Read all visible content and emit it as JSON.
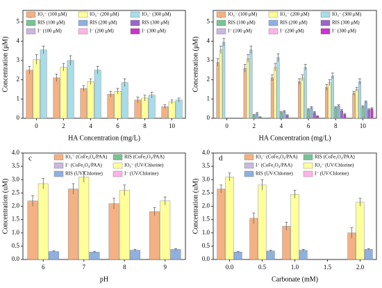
{
  "chart_data": [
    {
      "type": "bar",
      "label": "a",
      "xlabel": "HA Concentration (mg/L)",
      "ylabel": "Concentration (μM)",
      "categories": [
        "0",
        "2",
        "4",
        "6",
        "8",
        "10"
      ],
      "ylim": [
        0,
        5.6
      ],
      "yticks": [
        0,
        1,
        2,
        3,
        4,
        5
      ],
      "series": [
        {
          "name": "IO₃⁻ (100 μM)",
          "color": "#f4b183",
          "values": [
            2.5,
            2.1,
            1.55,
            1.25,
            0.95,
            0.6
          ],
          "errors": [
            0.2,
            0.2,
            0.15,
            0.15,
            0.15,
            0.1
          ]
        },
        {
          "name": "IO₃⁻ (200 μM)",
          "color": "#ffff99",
          "values": [
            3.05,
            2.65,
            1.9,
            1.4,
            1.05,
            0.85
          ],
          "errors": [
            0.25,
            0.2,
            0.15,
            0.15,
            0.15,
            0.1
          ]
        },
        {
          "name": "IO₃⁻ (300 μM)",
          "color": "#a8dce8",
          "values": [
            3.55,
            3.0,
            2.5,
            1.85,
            1.2,
            0.95
          ],
          "errors": [
            0.2,
            0.25,
            0.2,
            0.2,
            0.15,
            0.1
          ]
        },
        {
          "name": "RIS (100 μM)",
          "color": "#77c493",
          "values": [
            0,
            0,
            0,
            0,
            0,
            0
          ],
          "errors": [
            0,
            0,
            0,
            0,
            0,
            0
          ]
        },
        {
          "name": "RIS (200 μM)",
          "color": "#8fb0e0",
          "values": [
            0,
            0,
            0,
            0,
            0,
            0
          ],
          "errors": [
            0,
            0,
            0,
            0,
            0,
            0
          ]
        },
        {
          "name": "RIS (300 μM)",
          "color": "#9966cc",
          "values": [
            0,
            0,
            0,
            0,
            0,
            0
          ],
          "errors": [
            0,
            0,
            0,
            0,
            0,
            0
          ]
        },
        {
          "name": "I⁻ (100 μM)",
          "color": "#c9b7e0",
          "values": [
            0,
            0,
            0,
            0,
            0,
            0
          ],
          "errors": [
            0,
            0,
            0,
            0,
            0,
            0
          ]
        },
        {
          "name": "I⁻ (200 μM)",
          "color": "#ffb3e6",
          "values": [
            0,
            0,
            0,
            0,
            0,
            0
          ],
          "errors": [
            0,
            0,
            0,
            0,
            0,
            0
          ]
        },
        {
          "name": "I⁻ (300 μM)",
          "color": "#cc33cc",
          "values": [
            0,
            0,
            0,
            0,
            0,
            0
          ],
          "errors": [
            0,
            0,
            0,
            0,
            0,
            0
          ]
        }
      ]
    },
    {
      "type": "bar",
      "label": "b",
      "xlabel": "HA Concentration (mg/L)",
      "ylabel": "Concentration (μM)",
      "categories": [
        "0",
        "2",
        "4",
        "6",
        "8",
        "10"
      ],
      "ylim": [
        0,
        5.6
      ],
      "yticks": [
        0,
        1,
        2,
        3,
        4,
        5
      ],
      "series": [
        {
          "name": "IO₃⁻ (100 μM)",
          "color": "#f4b183",
          "values": [
            2.9,
            2.6,
            2.1,
            1.9,
            1.6,
            1.3
          ],
          "errors": [
            0.2,
            0.2,
            0.15,
            0.15,
            0.15,
            0.1
          ]
        },
        {
          "name": "IO₃⁻ (200 μM)",
          "color": "#ffff99",
          "values": [
            3.55,
            3.1,
            2.65,
            2.1,
            1.85,
            1.5
          ],
          "errors": [
            0.2,
            0.2,
            0.2,
            0.15,
            0.15,
            0.1
          ]
        },
        {
          "name": "IO₃⁻ (300 μM)",
          "color": "#a8dce8",
          "values": [
            3.95,
            3.55,
            3.15,
            2.65,
            2.2,
            1.9
          ],
          "errors": [
            0.2,
            0.2,
            0.2,
            0.15,
            0.15,
            0.15
          ]
        },
        {
          "name": "RIS (100 μM)",
          "color": "#77c493",
          "values": [
            0,
            0.15,
            0.3,
            0.45,
            0.55,
            0.6
          ],
          "errors": [
            0,
            0.05,
            0.05,
            0.05,
            0.05,
            0.05
          ]
        },
        {
          "name": "RIS (200 μM)",
          "color": "#8fb0e0",
          "values": [
            0,
            0.25,
            0.35,
            0.55,
            0.65,
            0.85
          ],
          "errors": [
            0,
            0.05,
            0.05,
            0.05,
            0.05,
            0.05
          ]
        },
        {
          "name": "RIS (300 μM)",
          "color": "#9966cc",
          "values": [
            0,
            0.05,
            0.15,
            0.3,
            0.4,
            0.45
          ],
          "errors": [
            0,
            0.03,
            0.03,
            0.05,
            0.05,
            0.05
          ]
        },
        {
          "name": "I⁻ (100 μM)",
          "color": "#c9b7e0",
          "values": [
            0,
            0,
            0,
            0,
            0,
            0
          ],
          "errors": [
            0,
            0,
            0,
            0,
            0,
            0
          ]
        },
        {
          "name": "I⁻ (200 μM)",
          "color": "#ffb3e6",
          "values": [
            0,
            0,
            0,
            0,
            0,
            0
          ],
          "errors": [
            0,
            0,
            0,
            0,
            0,
            0
          ]
        },
        {
          "name": "I⁻ (300 μM)",
          "color": "#cc33cc",
          "values": [
            0,
            0,
            0,
            0.1,
            0.2,
            0.5
          ],
          "errors": [
            0,
            0,
            0,
            0.03,
            0.05,
            0.05
          ]
        }
      ]
    },
    {
      "type": "bar",
      "label": "c",
      "xlabel": "pH",
      "ylabel": "Concentration (uM)",
      "categories": [
        "6",
        "7",
        "8",
        "9"
      ],
      "ylim": [
        0,
        4
      ],
      "yticks": [
        {
          "value": 0,
          "label": "0.0"
        },
        {
          "value": 0.5,
          "label": "0.5"
        },
        {
          "value": 1,
          "label": "1.0"
        },
        {
          "value": 1.5,
          "label": "1.5"
        },
        {
          "value": 2,
          "label": "2.0"
        },
        {
          "value": 2.5,
          "label": "2.5"
        },
        {
          "value": 3,
          "label": "3.0"
        },
        {
          "value": 3.5,
          "label": "3.5"
        },
        {
          "value": 4,
          "label": "4.0"
        }
      ],
      "series": [
        {
          "name": "IO₃⁻ (CoFe₂O₄/PAA)",
          "color": "#f4b183",
          "values": [
            2.2,
            2.65,
            2.1,
            1.8
          ],
          "errors": [
            0.2,
            0.2,
            0.2,
            0.15
          ]
        },
        {
          "name": "RIS (CoFe₂O₄/PAA)",
          "color": "#77c493",
          "values": [
            0,
            0,
            0,
            0
          ],
          "errors": [
            0,
            0,
            0,
            0
          ]
        },
        {
          "name": "I⁻ (CoFe₂O₄/PAA)",
          "color": "#c9b7e0",
          "values": [
            0,
            0,
            0,
            0
          ],
          "errors": [
            0,
            0,
            0,
            0
          ]
        },
        {
          "name": "IO₃⁻ (UV/Chlorine)",
          "color": "#ffff99",
          "values": [
            2.85,
            3.1,
            2.6,
            2.2
          ],
          "errors": [
            0.2,
            0.2,
            0.2,
            0.15
          ]
        },
        {
          "name": "RIS (UV/Chlorine)",
          "color": "#8fb0e0",
          "values": [
            0.3,
            0.28,
            0.35,
            0.38
          ],
          "errors": [
            0.03,
            0.03,
            0.03,
            0.03
          ]
        },
        {
          "name": "I⁻ (UV/Chlorine)",
          "color": "#ffb3e6",
          "values": [
            0,
            0,
            0,
            0
          ],
          "errors": [
            0,
            0,
            0,
            0
          ]
        }
      ]
    },
    {
      "type": "bar",
      "label": "d",
      "xlabel": "Carbonate (mM)",
      "ylabel": "Concentration (uM)",
      "categories": [
        "0.0",
        "0.5",
        "1.0",
        "1.5",
        "2.0"
      ],
      "ylim": [
        0,
        4
      ],
      "yticks": [
        {
          "value": 0,
          "label": "0.0"
        },
        {
          "value": 0.5,
          "label": "0.5"
        },
        {
          "value": 1,
          "label": "1.0"
        },
        {
          "value": 1.5,
          "label": "1.5"
        },
        {
          "value": 2,
          "label": "2.0"
        },
        {
          "value": 2.5,
          "label": "2.5"
        },
        {
          "value": 3,
          "label": "3.0"
        },
        {
          "value": 3.5,
          "label": "3.5"
        },
        {
          "value": 4,
          "label": "4.0"
        }
      ],
      "series": [
        {
          "name": "IO₃⁻ (CoFe₂O₄/PAA)",
          "color": "#f4b183",
          "values": [
            2.65,
            1.55,
            1.25,
            null,
            1.0
          ],
          "errors": [
            0.15,
            0.2,
            0.15,
            null,
            0.2
          ]
        },
        {
          "name": "RIS (CoFe₂O₄/PAA)",
          "color": "#77c493",
          "values": [
            0,
            0,
            0,
            null,
            0
          ],
          "errors": [
            0,
            0,
            0,
            null,
            0
          ]
        },
        {
          "name": "I⁻ (CoFe₂O₄/PAA)",
          "color": "#c9b7e0",
          "values": [
            0,
            0,
            0,
            null,
            0
          ],
          "errors": [
            0,
            0,
            0,
            null,
            0
          ]
        },
        {
          "name": "IO₃⁻ (UV/Chlorine)",
          "color": "#ffff99",
          "values": [
            3.1,
            2.8,
            2.45,
            null,
            2.15
          ],
          "errors": [
            0.15,
            0.2,
            0.15,
            null,
            0.15
          ]
        },
        {
          "name": "RIS (UV/Chlorine)",
          "color": "#8fb0e0",
          "values": [
            0.28,
            0.32,
            0.35,
            null,
            0.38
          ],
          "errors": [
            0.03,
            0.03,
            0.03,
            null,
            0.03
          ]
        },
        {
          "name": "I⁻ (UV/Chlorine)",
          "color": "#ffb3e6",
          "values": [
            0,
            0,
            0,
            null,
            0
          ],
          "errors": [
            0,
            0,
            0,
            null,
            0
          ]
        }
      ]
    }
  ]
}
